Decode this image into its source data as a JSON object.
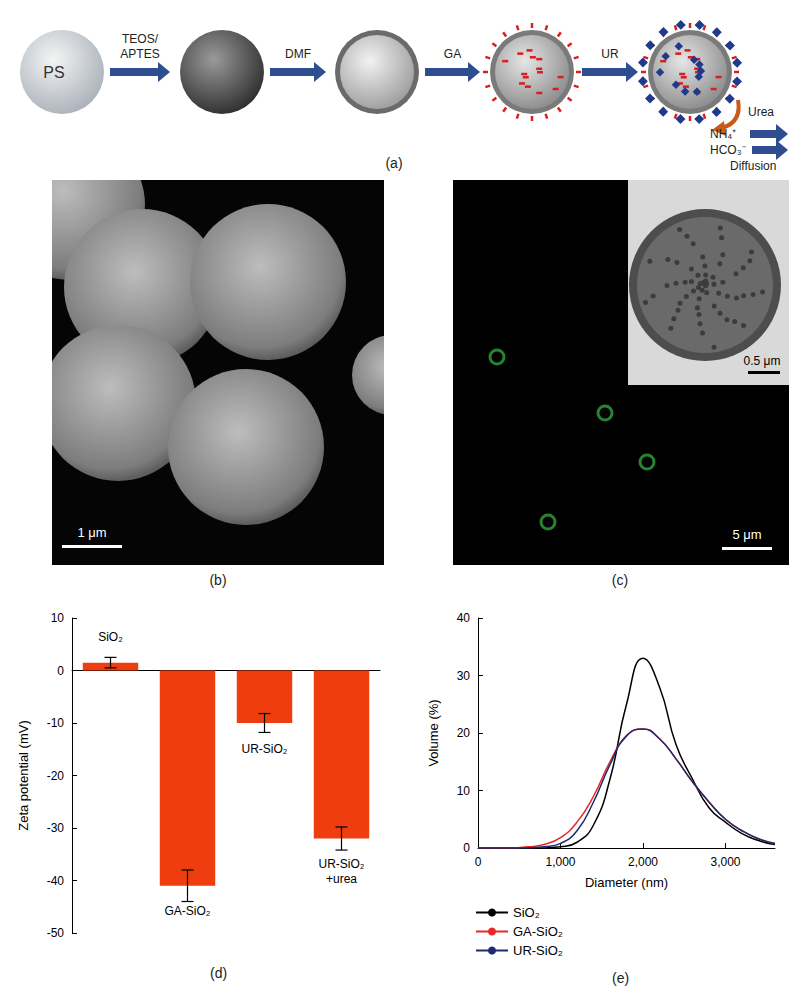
{
  "diagram": {
    "label": "(a)",
    "core": "PS",
    "steps": [
      [
        "TEOS/",
        "APTES"
      ],
      [
        "DMF"
      ],
      [
        "GA"
      ],
      [
        "UR"
      ]
    ],
    "release": {
      "substrate": "Urea",
      "products": [
        "NH₄⁺",
        "HCO₃⁻"
      ],
      "process": "Diffusion"
    }
  },
  "images": [
    {
      "label": "(b)",
      "scale_bar": "1 μm"
    },
    {
      "label": "(c)",
      "scale_bar": "5 μm",
      "inset_scale_bar": "0.5 μm"
    }
  ],
  "chart_data": [
    {
      "type": "bar",
      "panel": "(d)",
      "y_label": "Zeta potential (mV)",
      "categories": [
        "SiO₂",
        "GA-SiO₂",
        "UR-SiO₂",
        "UR-SiO₂\n+urea"
      ],
      "values": [
        1.5,
        -41,
        -10,
        -32
      ],
      "errors": [
        1,
        3,
        1.8,
        2.2
      ],
      "color": "#ee3e0f",
      "ylim": [
        -50,
        10
      ],
      "yticks": [
        -50,
        -40,
        -30,
        -20,
        -10,
        0,
        10
      ],
      "grid": false
    },
    {
      "type": "line",
      "panel": "(e)",
      "x_label": "Diameter (nm)",
      "y_label": "Volume (%)",
      "x": [
        0,
        200,
        400,
        600,
        800,
        1000,
        1200,
        1400,
        1600,
        1800,
        2000,
        2200,
        2400,
        2600,
        2800,
        3000,
        3200,
        3400,
        3600
      ],
      "series": [
        {
          "name": "SiO₂",
          "color": "#000000",
          "values": [
            0,
            0,
            0,
            0,
            0,
            0.2,
            1,
            4,
            12,
            25,
            33,
            28,
            18,
            12,
            7,
            4.5,
            2.5,
            1.3,
            0.6
          ]
        },
        {
          "name": "GA-SiO₂",
          "color": "#e8262b",
          "values": [
            0,
            0,
            0,
            0.2,
            0.6,
            1.8,
            4.5,
            9,
            15,
            19.5,
            20.7,
            19,
            15.5,
            11.5,
            8,
            5,
            3,
            1.6,
            0.8
          ]
        },
        {
          "name": "UR-SiO₂",
          "color": "#1f2a6e",
          "values": [
            0,
            0,
            0,
            0,
            0.2,
            0.8,
            3,
            8,
            14.5,
            19.5,
            20.7,
            19,
            15.5,
            11.5,
            8,
            5,
            3,
            1.6,
            0.8
          ]
        }
      ],
      "xlim": [
        0,
        3600
      ],
      "xticks": [
        0,
        1000,
        2000,
        3000
      ],
      "ylim": [
        0,
        40
      ],
      "yticks": [
        0,
        10,
        20,
        30,
        40
      ],
      "grid": false,
      "legend": "bottom"
    }
  ]
}
